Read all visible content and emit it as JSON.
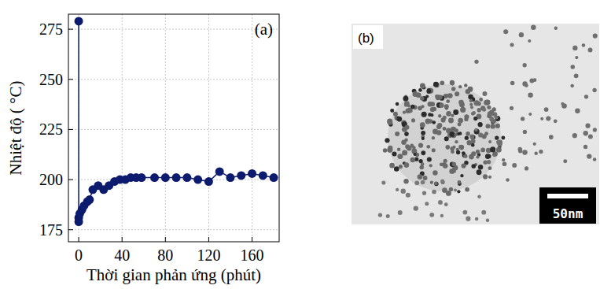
{
  "chart_data": {
    "type": "line",
    "panel_label": "(a)",
    "x_label": "Thời gian phản ứng (phút)",
    "y_label": "Nhiệt độ ( °C)",
    "x": [
      0,
      0,
      0,
      1,
      3,
      5,
      8,
      10,
      13,
      18,
      23,
      28,
      33,
      38,
      43,
      48,
      53,
      58,
      70,
      80,
      90,
      100,
      110,
      120,
      130,
      140,
      150,
      160,
      170,
      180
    ],
    "values": [
      279,
      181,
      179,
      183,
      185,
      187,
      189,
      190,
      195,
      197,
      195,
      197,
      199,
      200,
      200,
      201,
      201,
      201,
      201,
      201,
      201,
      201,
      200,
      199,
      204,
      201,
      202,
      203,
      202,
      201
    ],
    "color": "#0d1b6e",
    "marker": "circle",
    "line_style": "solid",
    "xlim": [
      -9.5,
      185
    ],
    "xticks": [
      0,
      40,
      80,
      120,
      160
    ],
    "ylim": [
      169,
      282.5
    ],
    "yticks": [
      175,
      200,
      225,
      250,
      275
    ],
    "grid": true
  },
  "image": {
    "panel_label": "(b)",
    "scale_bar_label": "50nm"
  }
}
